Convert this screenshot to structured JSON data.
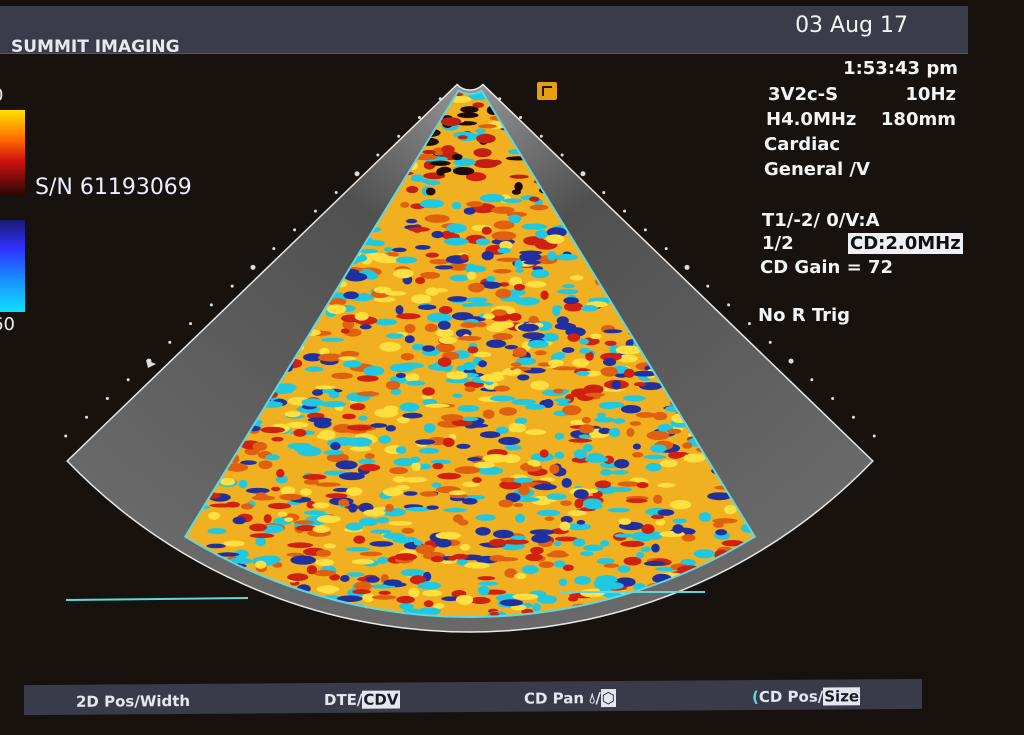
{
  "header": {
    "brand": "SUMMIT IMAGING",
    "date": "03 Aug 17"
  },
  "serial": "S/N 61193069",
  "color_scale": {
    "top_label": "0",
    "bottom_label": "60"
  },
  "info": {
    "time": "1:53:43 pm",
    "probe": "3V2c-S",
    "frame_rate": "10Hz",
    "harmonic_freq": "H4.0MHz",
    "depth": "180mm",
    "preset": "Cardiac",
    "sub_preset": "General /V",
    "settings": "T1/-2/  0/V:A",
    "ratio": "1/2",
    "cd_freq": "CD:2.0MHz",
    "cd_gain": "CD Gain =  72",
    "trigger": "No R Trig"
  },
  "bottom_bar": {
    "item1": "2D Pos/Width",
    "item2_a": "DTE/",
    "item2_b": "CDV",
    "item3": "CD Pan ",
    "item3_sep": "/",
    "item4_a": "CD Pos/",
    "item4_b": "Size"
  },
  "colors": {
    "screen_bg": "#17120e",
    "bar_bg": "#3b3c4a",
    "sector_outline": "#5fd8e0",
    "marker": "#e4a010"
  }
}
